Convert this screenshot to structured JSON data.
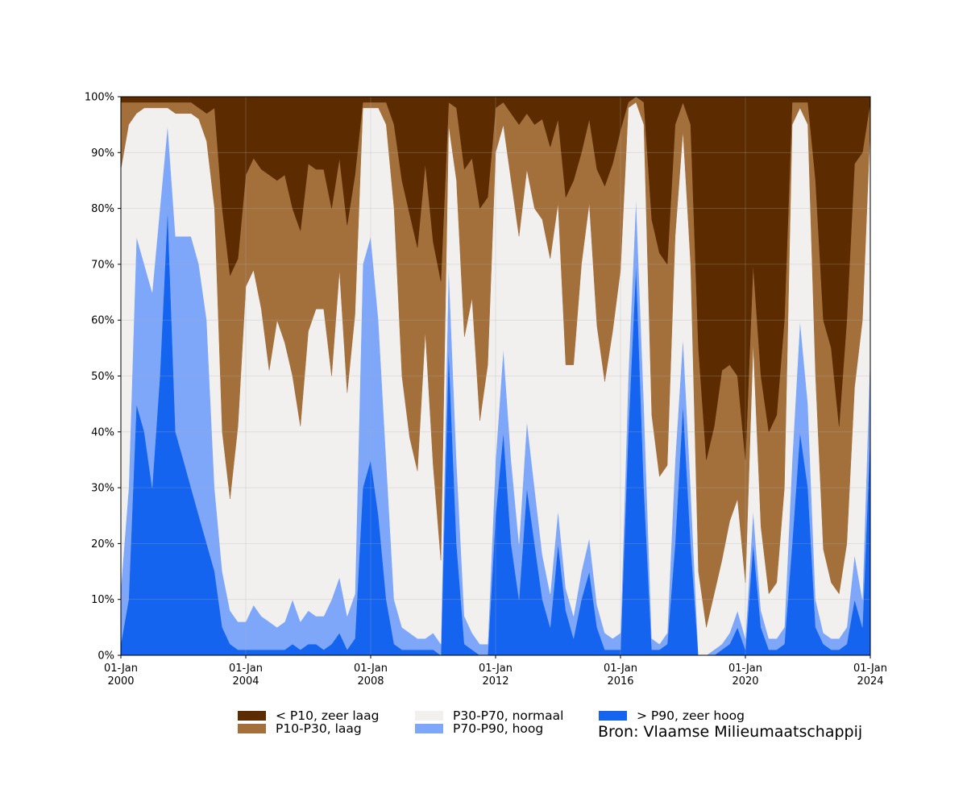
{
  "chart_data": {
    "type": "area",
    "stacked": true,
    "percent": true,
    "xlabel": "",
    "ylabel": "",
    "title": "",
    "ylim": [
      0,
      100
    ],
    "xlim": [
      "2000-01-01",
      "2024-01-01"
    ],
    "grid": true,
    "legend_placement": "bottom",
    "yticks": [
      "0%",
      "10%",
      "20%",
      "30%",
      "40%",
      "50%",
      "60%",
      "70%",
      "80%",
      "90%",
      "100%"
    ],
    "xticks": [
      {
        "date": "2000-01-01",
        "line1": "01-Jan",
        "line2": "2000"
      },
      {
        "date": "2004-01-01",
        "line1": "01-Jan",
        "line2": "2004"
      },
      {
        "date": "2008-01-01",
        "line1": "01-Jan",
        "line2": "2008"
      },
      {
        "date": "2012-01-01",
        "line1": "01-Jan",
        "line2": "2012"
      },
      {
        "date": "2016-01-01",
        "line1": "01-Jan",
        "line2": "2016"
      },
      {
        "date": "2020-01-01",
        "line1": "01-Jan",
        "line2": "2020"
      },
      {
        "date": "2024-01-01",
        "line1": "01-Jan",
        "line2": "2024"
      }
    ],
    "x": [
      "2000-01-01",
      "2000-04-01",
      "2000-07-01",
      "2000-10-01",
      "2001-01-01",
      "2001-04-01",
      "2001-07-01",
      "2001-10-01",
      "2002-01-01",
      "2002-04-01",
      "2002-07-01",
      "2002-10-01",
      "2003-01-01",
      "2003-04-01",
      "2003-07-01",
      "2003-10-01",
      "2004-01-01",
      "2004-04-01",
      "2004-07-01",
      "2004-10-01",
      "2005-01-01",
      "2005-04-01",
      "2005-07-01",
      "2005-10-01",
      "2006-01-01",
      "2006-04-01",
      "2006-07-01",
      "2006-10-01",
      "2007-01-01",
      "2007-04-01",
      "2007-07-01",
      "2007-10-01",
      "2008-01-01",
      "2008-04-01",
      "2008-07-01",
      "2008-10-01",
      "2009-01-01",
      "2009-04-01",
      "2009-07-01",
      "2009-10-01",
      "2010-01-01",
      "2010-04-01",
      "2010-07-01",
      "2010-10-01",
      "2011-01-01",
      "2011-04-01",
      "2011-07-01",
      "2011-10-01",
      "2012-01-01",
      "2012-04-01",
      "2012-07-01",
      "2012-10-01",
      "2013-01-01",
      "2013-04-01",
      "2013-07-01",
      "2013-10-01",
      "2014-01-01",
      "2014-04-01",
      "2014-07-01",
      "2014-10-01",
      "2015-01-01",
      "2015-04-01",
      "2015-07-01",
      "2015-10-01",
      "2016-01-01",
      "2016-04-01",
      "2016-07-01",
      "2016-10-01",
      "2017-01-01",
      "2017-04-01",
      "2017-07-01",
      "2017-10-01",
      "2018-01-01",
      "2018-04-01",
      "2018-07-01",
      "2018-10-01",
      "2019-01-01",
      "2019-04-01",
      "2019-07-01",
      "2019-10-01",
      "2020-01-01",
      "2020-04-01",
      "2020-07-01",
      "2020-10-01",
      "2021-01-01",
      "2021-04-01",
      "2021-07-01",
      "2021-10-01",
      "2022-01-01",
      "2022-04-01",
      "2022-07-01",
      "2022-10-01",
      "2023-01-01",
      "2023-04-01",
      "2023-07-01",
      "2023-10-01",
      "2024-01-01"
    ],
    "series": [
      {
        "name": "> P90, zeer hoog",
        "color": "#1464f0",
        "values": [
          2,
          10,
          45,
          40,
          30,
          50,
          80,
          40,
          35,
          30,
          25,
          20,
          15,
          5,
          2,
          1,
          1,
          1,
          1,
          1,
          1,
          1,
          2,
          1,
          2,
          2,
          1,
          2,
          4,
          1,
          3,
          30,
          35,
          25,
          10,
          2,
          1,
          1,
          1,
          1,
          1,
          0,
          55,
          20,
          2,
          1,
          0,
          0,
          25,
          40,
          20,
          10,
          30,
          20,
          10,
          5,
          20,
          8,
          3,
          10,
          15,
          5,
          1,
          1,
          1,
          40,
          70,
          30,
          1,
          1,
          2,
          20,
          45,
          20,
          0,
          0,
          0,
          1,
          2,
          5,
          1,
          20,
          5,
          1,
          1,
          2,
          20,
          40,
          30,
          5,
          2,
          1,
          1,
          2,
          10,
          5,
          40
        ]
      },
      {
        "name": "P70-P90, hoog",
        "color": "#7ea7fa",
        "values": [
          10,
          20,
          30,
          30,
          35,
          30,
          15,
          35,
          40,
          45,
          45,
          40,
          15,
          10,
          6,
          5,
          5,
          8,
          6,
          5,
          4,
          5,
          8,
          5,
          6,
          5,
          6,
          8,
          10,
          6,
          8,
          40,
          40,
          35,
          25,
          8,
          4,
          3,
          2,
          2,
          3,
          2,
          15,
          15,
          5,
          3,
          2,
          2,
          10,
          15,
          15,
          10,
          12,
          10,
          8,
          6,
          6,
          4,
          4,
          5,
          6,
          4,
          3,
          2,
          3,
          10,
          12,
          15,
          2,
          1,
          2,
          15,
          12,
          10,
          0,
          0,
          1,
          1,
          2,
          3,
          2,
          6,
          3,
          2,
          2,
          3,
          15,
          20,
          15,
          5,
          2,
          2,
          2,
          3,
          8,
          5,
          15
        ]
      },
      {
        "name": "P30-P70, normaal",
        "color": "#f2f0ee",
        "values": [
          75,
          65,
          22,
          28,
          33,
          18,
          3,
          22,
          22,
          22,
          26,
          32,
          50,
          25,
          20,
          35,
          60,
          60,
          55,
          45,
          55,
          50,
          40,
          35,
          50,
          55,
          55,
          40,
          55,
          40,
          50,
          28,
          23,
          38,
          60,
          70,
          45,
          35,
          30,
          55,
          30,
          15,
          25,
          50,
          50,
          60,
          40,
          50,
          55,
          40,
          50,
          55,
          45,
          50,
          60,
          60,
          55,
          40,
          45,
          55,
          60,
          50,
          45,
          55,
          65,
          48,
          17,
          50,
          40,
          30,
          30,
          40,
          37,
          40,
          15,
          5,
          10,
          15,
          20,
          20,
          10,
          30,
          15,
          8,
          10,
          25,
          60,
          38,
          50,
          40,
          15,
          10,
          8,
          15,
          30,
          50,
          40
        ]
      },
      {
        "name": "P10-P30, laag",
        "color": "#a3703c",
        "values": [
          12,
          4,
          2,
          1,
          1,
          1,
          1,
          2,
          2,
          2,
          2,
          5,
          18,
          40,
          40,
          30,
          20,
          20,
          25,
          35,
          25,
          30,
          30,
          35,
          30,
          25,
          25,
          30,
          20,
          30,
          25,
          1,
          1,
          1,
          4,
          15,
          35,
          40,
          40,
          30,
          40,
          50,
          4,
          13,
          30,
          25,
          38,
          30,
          8,
          4,
          12,
          20,
          10,
          15,
          18,
          20,
          15,
          30,
          33,
          20,
          15,
          28,
          35,
          30,
          25,
          1,
          1,
          4,
          35,
          40,
          36,
          20,
          5,
          25,
          40,
          30,
          30,
          34,
          28,
          22,
          22,
          14,
          27,
          29,
          30,
          30,
          4,
          1,
          4,
          35,
          41,
          42,
          30,
          40,
          40,
          30,
          4
        ]
      },
      {
        "name": "< P10, zeer laag",
        "color": "#5c2b00",
        "values": [
          1,
          1,
          1,
          1,
          1,
          1,
          1,
          1,
          1,
          1,
          2,
          3,
          2,
          20,
          32,
          29,
          14,
          11,
          13,
          14,
          15,
          14,
          20,
          24,
          12,
          13,
          13,
          20,
          11,
          23,
          14,
          1,
          1,
          1,
          1,
          5,
          15,
          21,
          27,
          12,
          26,
          33,
          1,
          2,
          13,
          11,
          20,
          18,
          2,
          1,
          3,
          5,
          3,
          5,
          4,
          9,
          4,
          18,
          15,
          10,
          4,
          13,
          16,
          12,
          6,
          1,
          0,
          1,
          22,
          28,
          30,
          5,
          1,
          5,
          45,
          65,
          59,
          49,
          48,
          50,
          65,
          30,
          50,
          60,
          57,
          40,
          1,
          1,
          1,
          15,
          40,
          45,
          59,
          40,
          12,
          10,
          1
        ]
      }
    ]
  },
  "legend": {
    "items": [
      {
        "label": "< P10, zeer laag",
        "color": "#5c2b00"
      },
      {
        "label": "P10-P30, laag",
        "color": "#a3703c"
      },
      {
        "label": "P30-P70, normaal",
        "color": "#f2f0ee"
      },
      {
        "label": "P70-P90, hoog",
        "color": "#7ea7fa"
      },
      {
        "label": "> P90, zeer hoog",
        "color": "#1464f0"
      }
    ]
  },
  "source": "Bron: Vlaamse Milieumaatschappij"
}
